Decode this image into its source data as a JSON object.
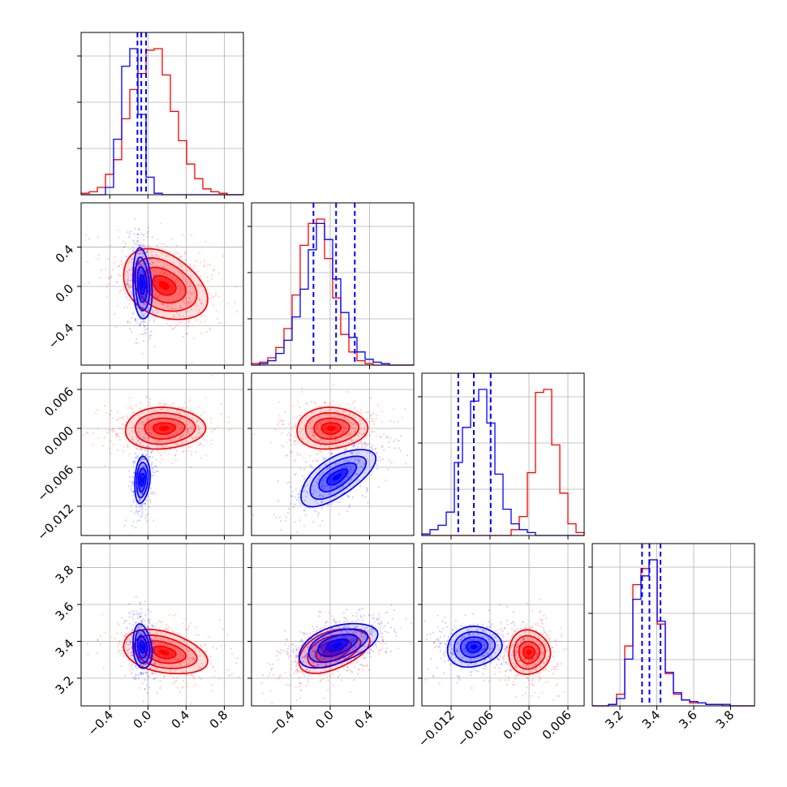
{
  "colors": {
    "red": "#ff0000",
    "blue": "#0000ff",
    "grid": "#b0b0b0"
  },
  "chart_data": {
    "type": "corner",
    "grid": true,
    "series": [
      {
        "name": "",
        "color": "#ff0000"
      },
      {
        "name": "",
        "color": "#0000ff"
      }
    ],
    "parameters": [
      {
        "range": [
          -0.7,
          1.0
        ],
        "ticks": [
          -0.4,
          0.0,
          0.4,
          0.8
        ],
        "tick_labels": [
          "−0.4",
          "0.0",
          "0.4",
          "0.8"
        ],
        "blue_quantiles": [
          -0.11,
          -0.07,
          -0.02
        ]
      },
      {
        "range": [
          -0.8,
          0.85
        ],
        "ticks": [
          -0.4,
          0.0,
          0.4
        ],
        "tick_labels": [
          "−0.4",
          "0.0",
          "0.4"
        ],
        "blue_quantiles": [
          -0.17,
          0.06,
          0.25
        ]
      },
      {
        "range": [
          -0.0165,
          0.0085
        ],
        "ticks": [
          -0.012,
          -0.006,
          0.0,
          0.006
        ],
        "tick_labels": [
          "−0.012",
          "−0.006",
          "0.000",
          "0.006"
        ],
        "blue_quantiles": [
          -0.0109,
          -0.0085,
          -0.0059
        ]
      },
      {
        "range": [
          3.05,
          3.93
        ],
        "ticks": [
          3.2,
          3.4,
          3.6,
          3.8
        ],
        "tick_labels": [
          "3.2",
          "3.4",
          "3.6",
          "3.8"
        ],
        "blue_quantiles": [
          3.32,
          3.36,
          3.42
        ]
      }
    ],
    "histograms": [
      {
        "red": [
          0.01,
          0.02,
          0.05,
          0.14,
          0.24,
          0.52,
          0.72,
          0.83,
          0.99,
          1.0,
          0.82,
          0.57,
          0.37,
          0.21,
          0.11,
          0.04,
          0.02,
          0.01,
          0.0,
          0.0
        ],
        "blue": [
          0.0,
          0.0,
          0.0,
          0.05,
          0.38,
          0.88,
          1.0,
          0.55,
          0.12,
          0.01,
          0.0,
          0.0,
          0.0,
          0.0,
          0.0,
          0.0,
          0.0,
          0.0,
          0.0,
          0.0
        ]
      },
      {
        "red": [
          0.01,
          0.02,
          0.05,
          0.12,
          0.25,
          0.48,
          0.82,
          0.97,
          1.0,
          0.73,
          0.46,
          0.21,
          0.09,
          0.03,
          0.01,
          0.0,
          0.0,
          0.0,
          0.0,
          0.0
        ],
        "blue": [
          0.0,
          0.01,
          0.03,
          0.08,
          0.17,
          0.33,
          0.52,
          0.79,
          0.97,
          0.86,
          0.59,
          0.36,
          0.19,
          0.09,
          0.04,
          0.02,
          0.01,
          0.0,
          0.0,
          0.0
        ]
      },
      {
        "red": [
          0.0,
          0.0,
          0.0,
          0.0,
          0.0,
          0.0,
          0.0,
          0.0,
          0.0,
          0.0,
          0.0,
          0.04,
          0.13,
          0.43,
          0.98,
          1.0,
          0.62,
          0.29,
          0.08,
          0.02
        ],
        "blue": [
          0.01,
          0.04,
          0.07,
          0.16,
          0.5,
          0.74,
          0.92,
          1.0,
          0.77,
          0.42,
          0.18,
          0.08,
          0.04,
          0.02,
          0.0,
          0.0,
          0.0,
          0.0,
          0.0,
          0.0
        ]
      },
      {
        "red": [
          0.0,
          0.0,
          0.01,
          0.08,
          0.41,
          0.83,
          0.94,
          1.0,
          0.56,
          0.22,
          0.08,
          0.04,
          0.02,
          0.02,
          0.01,
          0.01,
          0.0,
          0.0,
          0.0,
          0.0
        ],
        "blue": [
          0.0,
          0.0,
          0.01,
          0.05,
          0.32,
          0.73,
          0.89,
          1.0,
          0.58,
          0.23,
          0.09,
          0.04,
          0.03,
          0.02,
          0.01,
          0.01,
          0.01,
          0.0,
          0.0,
          0.0
        ]
      }
    ],
    "joint_distributions": [
      {
        "x_param": 0,
        "y_param": 1,
        "red": {
          "center": [
            0.17,
            0.01
          ],
          "sd": [
            0.22,
            0.18
          ],
          "corr": -0.35
        },
        "blue": {
          "center": [
            -0.06,
            0.02
          ],
          "sd": [
            0.05,
            0.18
          ],
          "corr": -0.2
        }
      },
      {
        "x_param": 0,
        "y_param": 2,
        "red": {
          "center": [
            0.17,
            0.0
          ],
          "sd": [
            0.21,
            0.0016
          ],
          "corr": 0.05
        },
        "blue": {
          "center": [
            -0.06,
            -0.0079
          ],
          "sd": [
            0.04,
            0.0018
          ],
          "corr": 0.2
        }
      },
      {
        "x_param": 1,
        "y_param": 2,
        "red": {
          "center": [
            0.01,
            0.0
          ],
          "sd": [
            0.18,
            0.0016
          ],
          "corr": 0.05
        },
        "blue": {
          "center": [
            0.07,
            -0.0075
          ],
          "sd": [
            0.19,
            0.0022
          ],
          "corr": 0.65
        }
      },
      {
        "x_param": 0,
        "y_param": 3,
        "red": {
          "center": [
            0.17,
            3.34
          ],
          "sd": [
            0.22,
            0.06
          ],
          "corr": -0.35
        },
        "blue": {
          "center": [
            -0.06,
            3.37
          ],
          "sd": [
            0.05,
            0.06
          ],
          "corr": -0.2
        }
      },
      {
        "x_param": 1,
        "y_param": 3,
        "red": {
          "center": [
            0.03,
            3.35
          ],
          "sd": [
            0.18,
            0.06
          ],
          "corr": 0.45
        },
        "blue": {
          "center": [
            0.07,
            3.38
          ],
          "sd": [
            0.2,
            0.06
          ],
          "corr": 0.5
        }
      },
      {
        "x_param": 2,
        "y_param": 3,
        "red": {
          "center": [
            0.0,
            3.34
          ],
          "sd": [
            0.0016,
            0.06
          ],
          "corr": 0.0
        },
        "blue": {
          "center": [
            -0.0085,
            3.37
          ],
          "sd": [
            0.0021,
            0.055
          ],
          "corr": 0.1
        }
      }
    ]
  }
}
